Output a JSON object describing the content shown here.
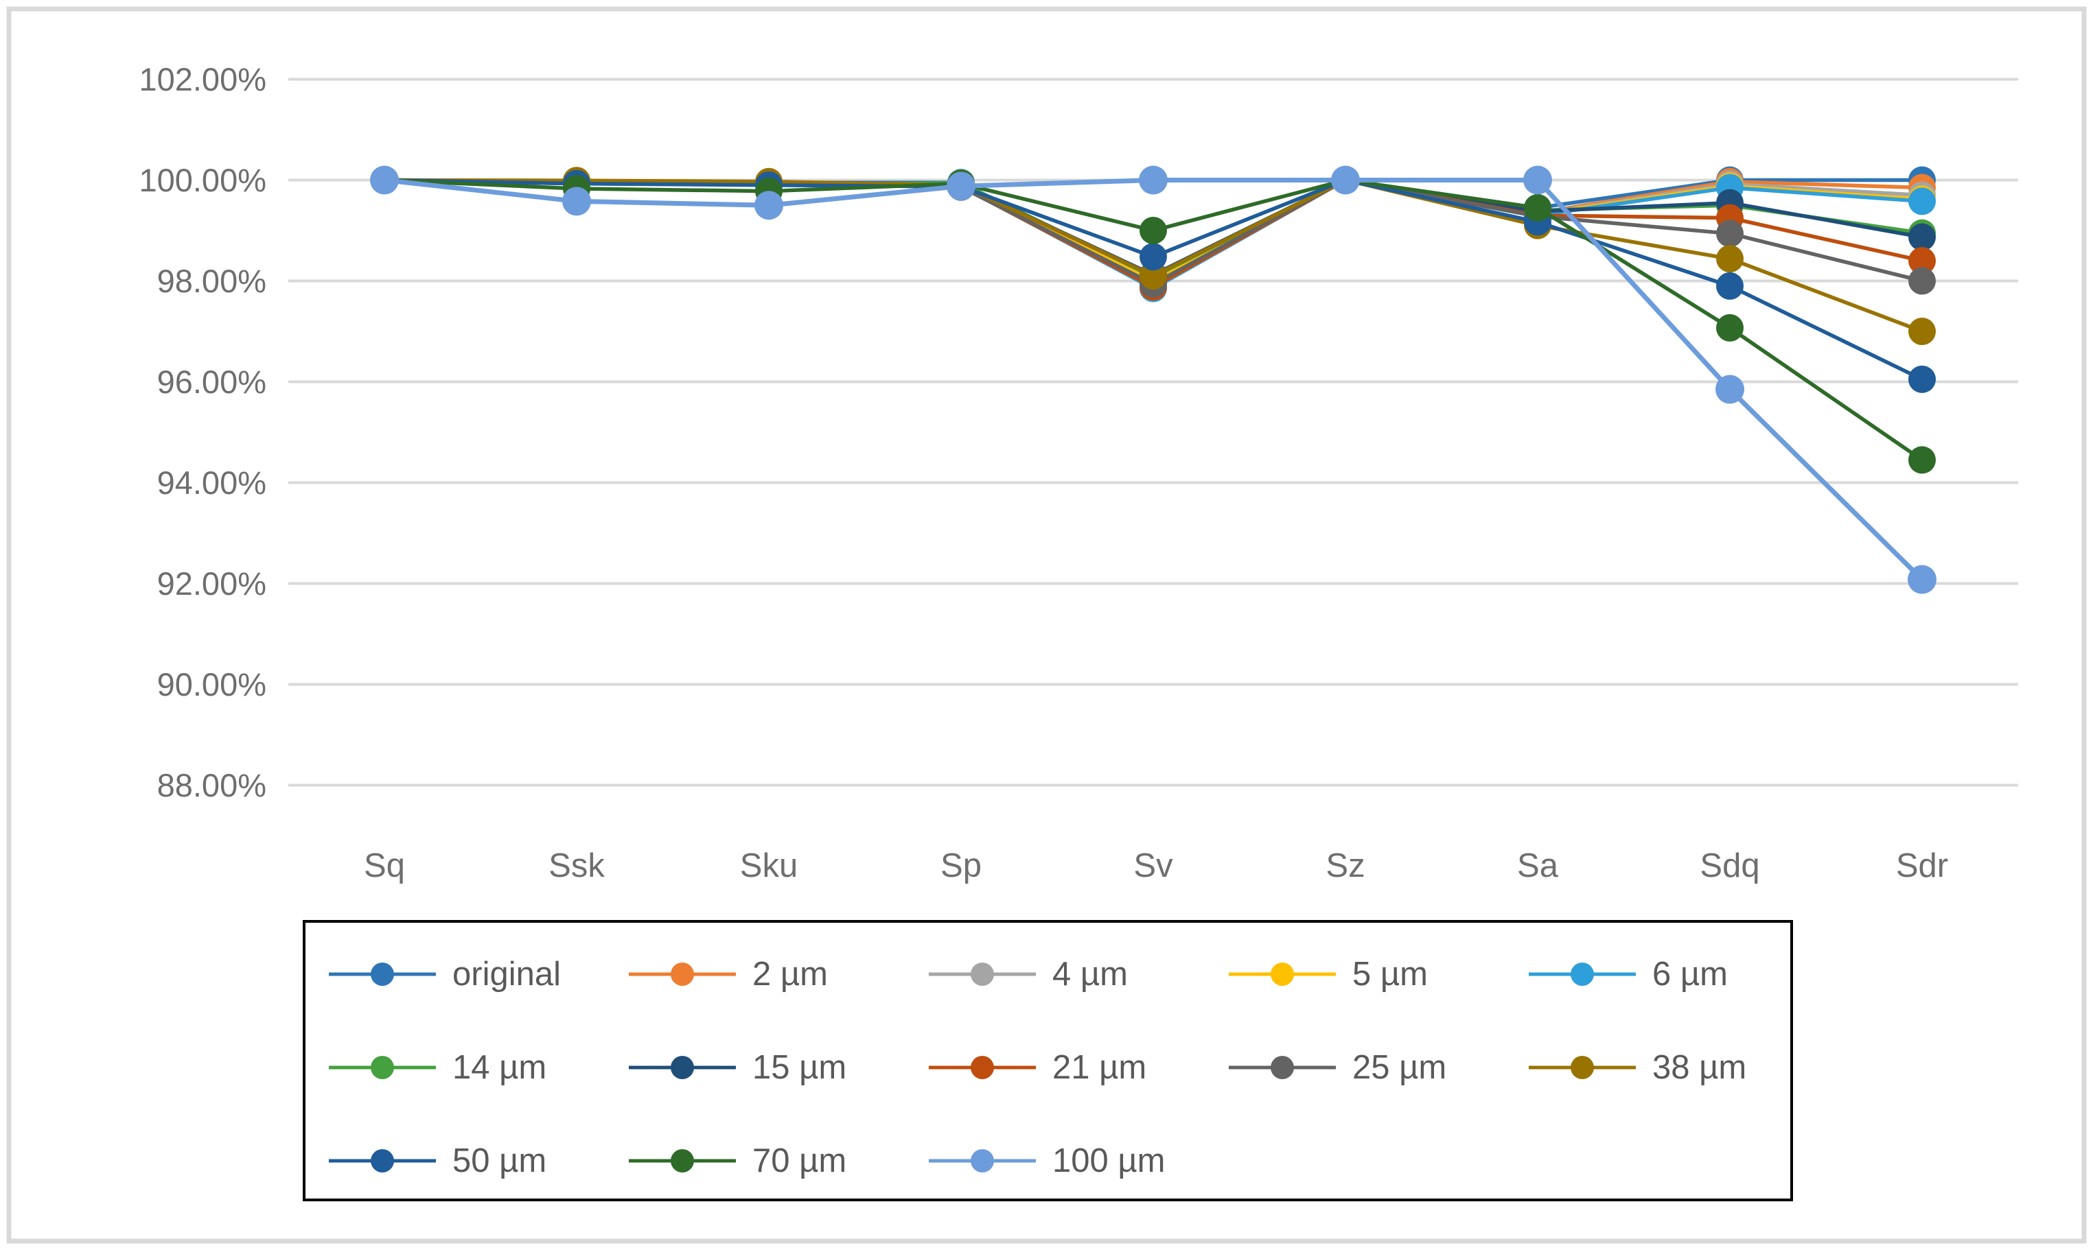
{
  "figure": {
    "border_color": "#d9d9d9",
    "background": "#ffffff"
  },
  "chart_data": {
    "type": "line",
    "title": "",
    "xlabel": "",
    "ylabel": "",
    "value_format": "percent",
    "ylim": [
      88,
      102
    ],
    "y_tick_step_pct": 2,
    "y_tick_labels": [
      "102.00%",
      "100.00%",
      "98.00%",
      "96.00%",
      "94.00%",
      "92.00%",
      "90.00%",
      "88.00%"
    ],
    "grid": "horizontal",
    "gridline_color": "#d9d9d9",
    "axis_text_color": "#6e6e6e",
    "legend_position": "bottom-box",
    "legend_border_color": "#000000",
    "legend_text_color": "#595959",
    "marker": "circle",
    "categories": [
      "Sq",
      "Ssk",
      "Sku",
      "Sp",
      "Sv",
      "Sz",
      "Sa",
      "Sdq",
      "Sdr"
    ],
    "series": [
      {
        "name": "original",
        "color": "#2E75B6",
        "values": [
          100,
          99.97,
          99.95,
          99.95,
          98.0,
          100,
          99.45,
          100.0,
          100.0
        ]
      },
      {
        "name": "2 µm",
        "color": "#ED7D31",
        "values": [
          100,
          99.99,
          99.96,
          99.9,
          98.0,
          100,
          99.35,
          99.97,
          99.85
        ]
      },
      {
        "name": "4 µm",
        "color": "#A5A5A5",
        "values": [
          100,
          99.96,
          99.94,
          99.9,
          97.97,
          100,
          99.33,
          99.92,
          99.7
        ]
      },
      {
        "name": "5 µm",
        "color": "#FFC000",
        "values": [
          100,
          99.98,
          99.95,
          99.9,
          98.03,
          100,
          99.32,
          99.88,
          99.62
        ]
      },
      {
        "name": "6 µm",
        "color": "#2E9FDA",
        "values": [
          100,
          99.95,
          99.93,
          99.88,
          97.85,
          100,
          99.3,
          99.85,
          99.58
        ]
      },
      {
        "name": "14 µm",
        "color": "#45A13E",
        "values": [
          100,
          99.94,
          99.92,
          99.94,
          98.08,
          100,
          99.4,
          99.5,
          98.95
        ]
      },
      {
        "name": "15 µm",
        "color": "#1F4E79",
        "values": [
          100,
          99.93,
          99.91,
          99.9,
          98.12,
          100,
          99.38,
          99.55,
          98.87
        ]
      },
      {
        "name": "21 µm",
        "color": "#BF4D0E",
        "values": [
          100,
          99.97,
          99.94,
          99.87,
          97.88,
          100,
          99.3,
          99.25,
          98.4
        ]
      },
      {
        "name": "25 µm",
        "color": "#636363",
        "values": [
          100,
          99.96,
          99.93,
          99.86,
          97.94,
          100,
          99.28,
          98.94,
          98.0
        ]
      },
      {
        "name": "38 µm",
        "color": "#997300",
        "values": [
          100,
          99.99,
          99.97,
          99.9,
          98.1,
          100,
          99.1,
          98.44,
          97.0
        ]
      },
      {
        "name": "50 µm",
        "color": "#1F5C99",
        "values": [
          100,
          99.93,
          99.9,
          99.87,
          98.48,
          100,
          99.17,
          97.9,
          96.05
        ]
      },
      {
        "name": "70 µm",
        "color": "#2E6B28",
        "values": [
          100,
          99.83,
          99.78,
          99.93,
          99.0,
          100,
          99.45,
          97.07,
          94.45
        ]
      },
      {
        "name": "100 µm",
        "color": "#6C9CDC",
        "values": [
          100,
          99.58,
          99.5,
          99.88,
          100.0,
          100,
          100.0,
          95.85,
          92.08
        ]
      }
    ],
    "legend_rows": [
      [
        "original",
        "2 µm",
        "4 µm",
        "5 µm",
        "6 µm"
      ],
      [
        "14 µm",
        "15 µm",
        "21 µm",
        "25 µm",
        "38 µm"
      ],
      [
        "50 µm",
        "70 µm",
        "100 µm"
      ]
    ]
  }
}
